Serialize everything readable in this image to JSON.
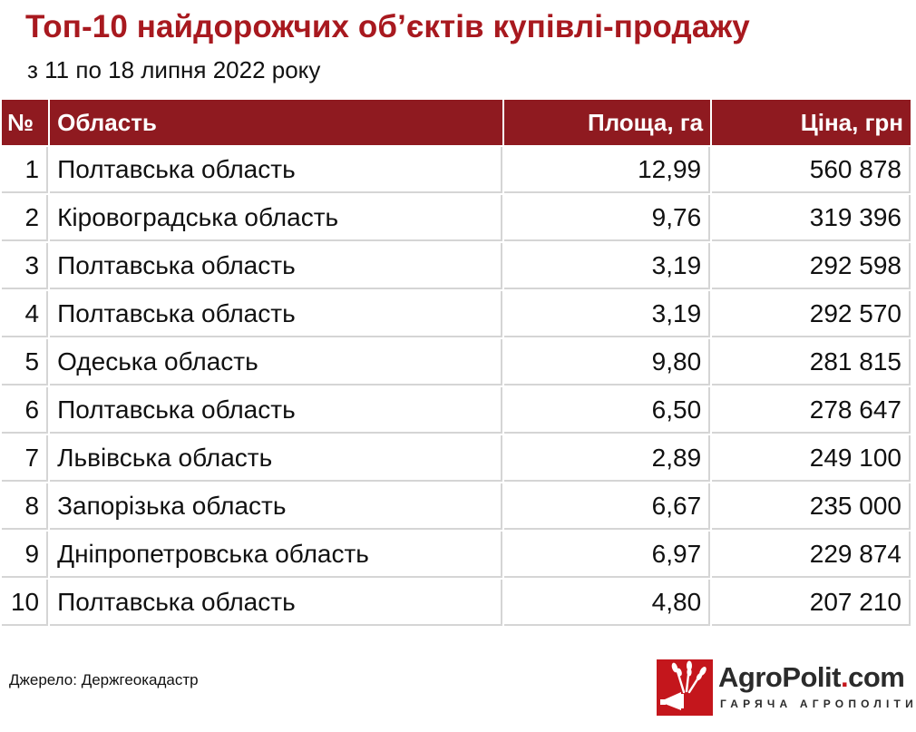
{
  "title": "Топ-10 найдорожчих об’єктів купівлі-продажу",
  "subtitle": "з 11 по 18 липня 2022 року",
  "chart_data": {
    "type": "table",
    "columns": [
      "№",
      "Область",
      "Площа, га",
      "Ціна, грн"
    ],
    "rows": [
      {
        "n": "1",
        "region": "Полтавська область",
        "area": "12,99",
        "price": "560 878"
      },
      {
        "n": "2",
        "region": "Кіровоградська область",
        "area": "9,76",
        "price": "319 396"
      },
      {
        "n": "3",
        "region": "Полтавська область",
        "area": "3,19",
        "price": "292 598"
      },
      {
        "n": "4",
        "region": "Полтавська область",
        "area": "3,19",
        "price": "292 570"
      },
      {
        "n": "5",
        "region": "Одеська область",
        "area": "9,80",
        "price": "281 815"
      },
      {
        "n": "6",
        "region": "Полтавська область",
        "area": "6,50",
        "price": "278 647"
      },
      {
        "n": "7",
        "region": "Львівська область",
        "area": "2,89",
        "price": "249 100"
      },
      {
        "n": "8",
        "region": "Запорізька область",
        "area": "6,67",
        "price": "235 000"
      },
      {
        "n": "9",
        "region": "Дніпропетровська область",
        "area": "6,97",
        "price": "229 874"
      },
      {
        "n": "10",
        "region": "Полтавська область",
        "area": "4,80",
        "price": "207 210"
      }
    ]
  },
  "source": "Джерело: Держгеокадастр",
  "logo": {
    "name_main": "AgroPolit",
    "name_dot": ".",
    "name_tld": "com",
    "tagline": "ГАРЯЧА АГРОПОЛІТИКА",
    "icon": "megaphone-wheat-logo-icon"
  },
  "colors": {
    "title": "#a8191f",
    "header_bg": "#8f1a20",
    "header_text": "#ffffff",
    "row_border": "#d5d5d5",
    "logo_red": "#c4161c"
  }
}
